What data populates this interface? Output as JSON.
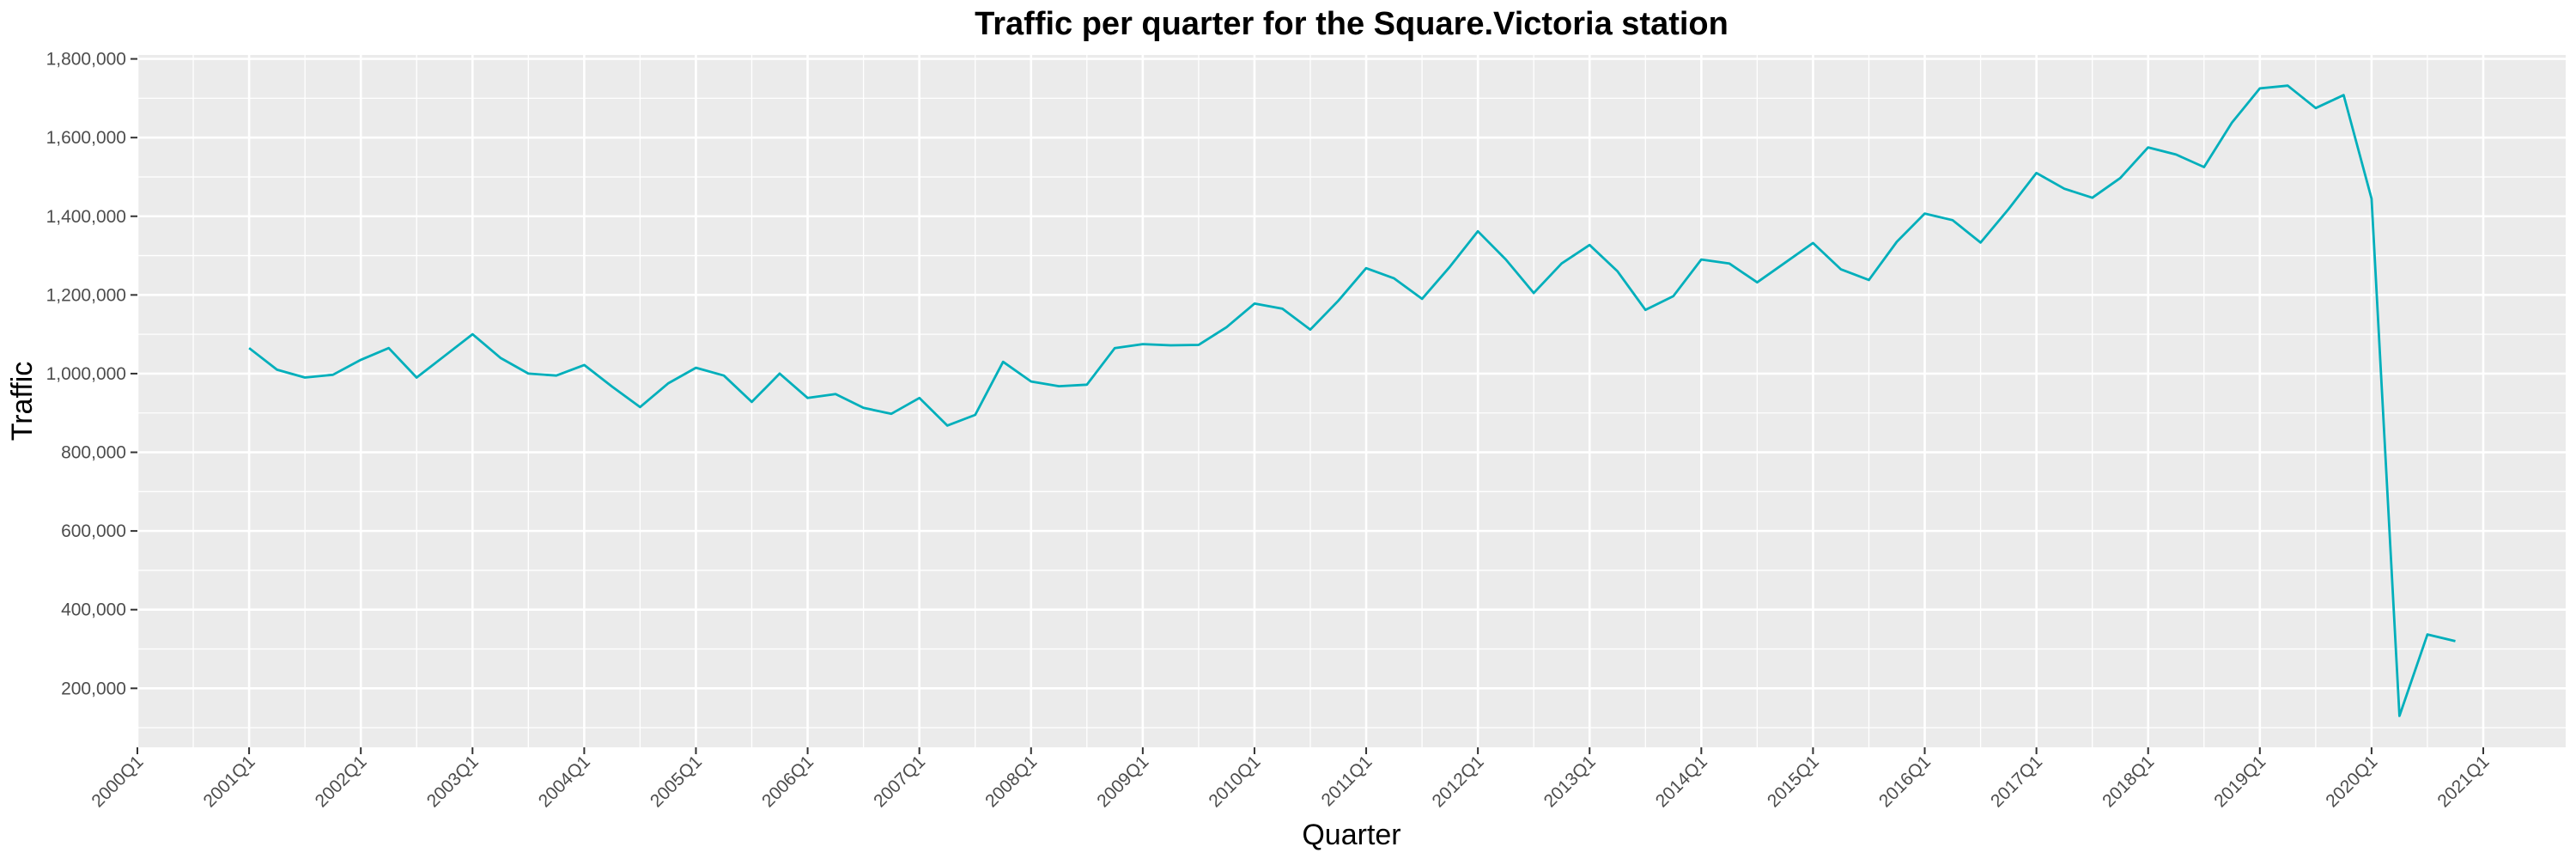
{
  "chart_data": {
    "type": "line",
    "title": "Traffic per quarter for the Square.Victoria station",
    "xlabel": "Quarter",
    "ylabel": "Traffic",
    "x_ticks": [
      "2000Q1",
      "2001Q1",
      "2002Q1",
      "2003Q1",
      "2004Q1",
      "2005Q1",
      "2006Q1",
      "2007Q1",
      "2008Q1",
      "2009Q1",
      "2010Q1",
      "2011Q1",
      "2012Q1",
      "2013Q1",
      "2014Q1",
      "2015Q1",
      "2016Q1",
      "2017Q1",
      "2018Q1",
      "2019Q1",
      "2020Q1",
      "2021Q1"
    ],
    "y_ticks": [
      "200,000",
      "400,000",
      "600,000",
      "800,000",
      "1,000,000",
      "1,200,000",
      "1,400,000",
      "1,600,000",
      "1,800,000"
    ],
    "y_tick_values": [
      200000,
      400000,
      600000,
      800000,
      1000000,
      1200000,
      1400000,
      1600000,
      1800000
    ],
    "xlim": [
      "2000Q1",
      "2021Q1"
    ],
    "ylim": [
      50000,
      1810000
    ],
    "grid": true,
    "legend": "none",
    "colors": {
      "line": "#00AFBB",
      "panel": "#EBEBEB",
      "grid": "#FFFFFF"
    },
    "series": [
      {
        "x": [
          "2001Q1",
          "2001Q2",
          "2001Q3",
          "2001Q4",
          "2002Q1",
          "2002Q2",
          "2002Q3",
          "2002Q4",
          "2003Q1",
          "2003Q2",
          "2003Q3",
          "2003Q4",
          "2004Q1",
          "2004Q2",
          "2004Q3",
          "2004Q4",
          "2005Q1",
          "2005Q2",
          "2005Q3",
          "2005Q4",
          "2006Q1",
          "2006Q2",
          "2006Q3",
          "2006Q4",
          "2007Q1",
          "2007Q2",
          "2007Q3",
          "2007Q4",
          "2008Q1",
          "2008Q2",
          "2008Q3",
          "2008Q4",
          "2009Q1",
          "2009Q2",
          "2009Q3",
          "2009Q4",
          "2010Q1",
          "2010Q2",
          "2010Q3",
          "2010Q4",
          "2011Q1",
          "2011Q2",
          "2011Q3",
          "2011Q4",
          "2012Q1",
          "2012Q2",
          "2012Q3",
          "2012Q4",
          "2013Q1",
          "2013Q2",
          "2013Q3",
          "2013Q4",
          "2014Q1",
          "2014Q2",
          "2014Q3",
          "2014Q4",
          "2015Q1",
          "2015Q2",
          "2015Q3",
          "2015Q4",
          "2016Q1",
          "2016Q2",
          "2016Q3",
          "2016Q4",
          "2017Q1",
          "2017Q2",
          "2017Q3",
          "2017Q4",
          "2018Q1",
          "2018Q2",
          "2018Q3",
          "2018Q4",
          "2019Q1",
          "2019Q2",
          "2019Q3",
          "2019Q4",
          "2020Q1",
          "2020Q2",
          "2020Q3",
          "2020Q4"
        ],
        "values": [
          1065000,
          1010000,
          990000,
          997000,
          1035000,
          1065000,
          990000,
          1045000,
          1100000,
          1040000,
          1000000,
          995000,
          1022000,
          967000,
          915000,
          975000,
          1015000,
          995000,
          928000,
          1000000,
          938000,
          948000,
          913000,
          898000,
          938000,
          868000,
          895000,
          1030000,
          980000,
          968000,
          972000,
          1065000,
          1075000,
          1072000,
          1073000,
          1118000,
          1178000,
          1165000,
          1112000,
          1185000,
          1268000,
          1242000,
          1190000,
          1272000,
          1362000,
          1290000,
          1205000,
          1280000,
          1327000,
          1260000,
          1162000,
          1197000,
          1290000,
          1280000,
          1232000,
          1282000,
          1332000,
          1265000,
          1238000,
          1335000,
          1407000,
          1390000,
          1333000,
          1418000,
          1510000,
          1470000,
          1447000,
          1497000,
          1575000,
          1557000,
          1525000,
          1638000,
          1725000,
          1732000,
          1675000,
          1708000,
          1445000,
          130000,
          337000,
          320000
        ]
      }
    ]
  }
}
